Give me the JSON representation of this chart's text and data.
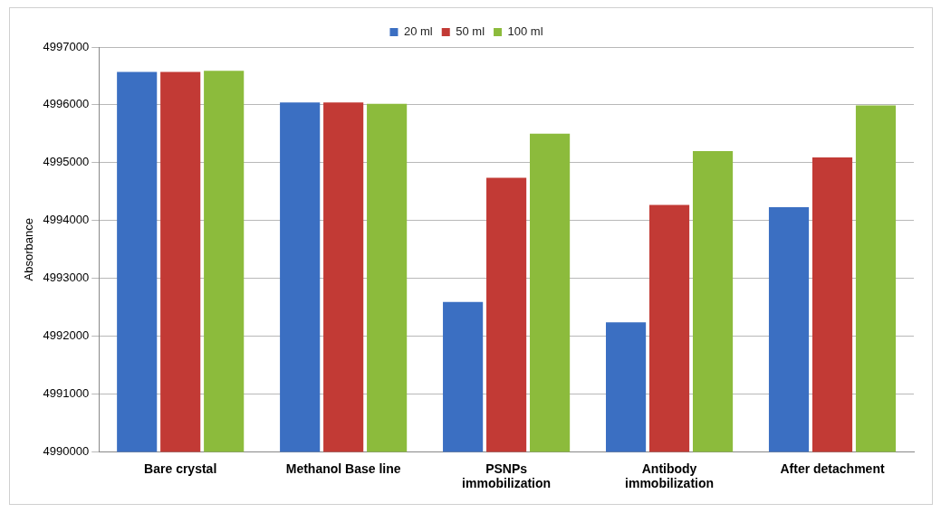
{
  "chart_data": {
    "type": "bar",
    "ylabel": "Absorbance",
    "categories": [
      "Bare crystal",
      "Methanol Base line",
      "PSNPs immobilization",
      "Antibody immobilization",
      "After detachment"
    ],
    "series": [
      {
        "name": "20 ml",
        "color": "#3b6fc2",
        "values": [
          4996570,
          4996040,
          4992590,
          4992240,
          4994230
        ]
      },
      {
        "name": "50 ml",
        "color": "#c23a35",
        "values": [
          4996570,
          4996040,
          4994740,
          4994270,
          4995090
        ]
      },
      {
        "name": "100 ml",
        "color": "#8cbb3c",
        "values": [
          4996590,
          4996020,
          4995500,
          4995200,
          4995990
        ]
      }
    ],
    "ylim": [
      4990000,
      4997000
    ],
    "yticks": [
      4990000,
      4991000,
      4992000,
      4993000,
      4994000,
      4995000,
      4996000,
      4997000
    ],
    "grid": "y",
    "legend": "top"
  }
}
